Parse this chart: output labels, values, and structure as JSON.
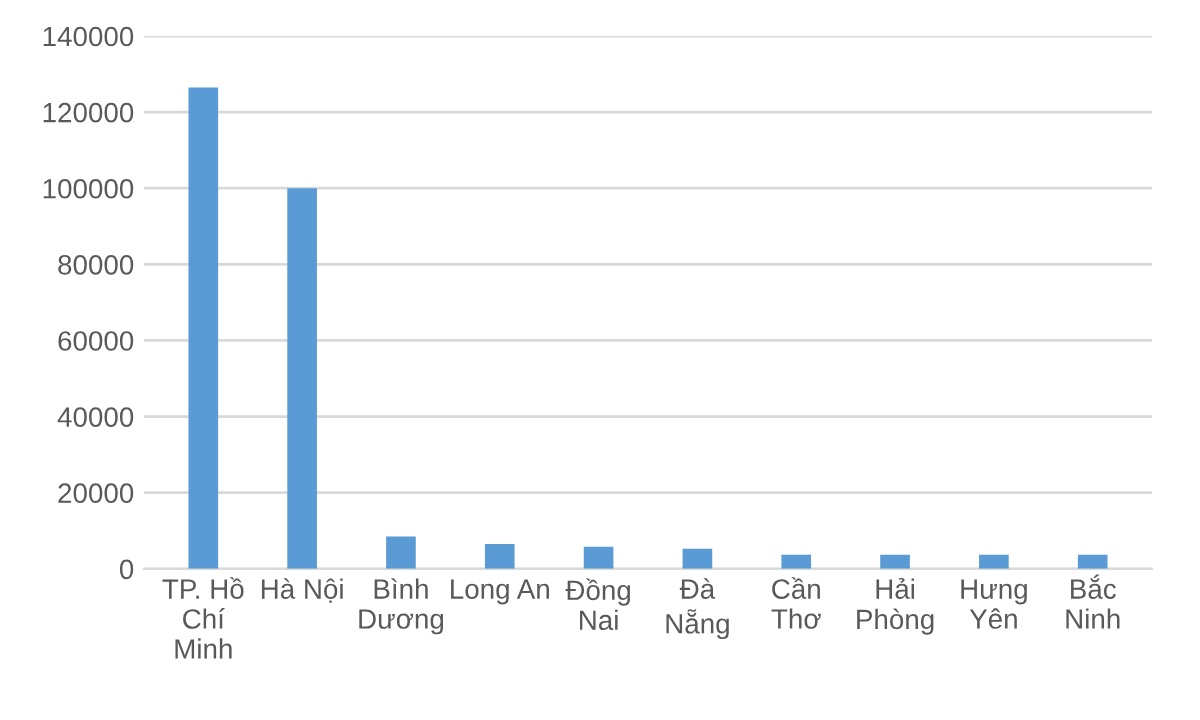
{
  "chart_data": {
    "type": "bar",
    "categories": [
      "TP. Hồ\nChí\nMinh",
      "Hà Nội",
      "Bình\nDương",
      "Long An",
      "Đồng\nNai",
      "Đà\nNẵng",
      "Cần\nThơ",
      "Hải\nPhòng",
      "Hưng\nYên",
      "Bắc\nNinh"
    ],
    "values": [
      126500,
      100000,
      8500,
      6500,
      5800,
      5300,
      3700,
      3700,
      3700,
      3700
    ],
    "color": "#5b9bd5",
    "ylim": [
      0,
      140000
    ],
    "yticks": [
      0,
      20000,
      40000,
      60000,
      80000,
      100000,
      120000,
      140000
    ],
    "grid": "y"
  }
}
